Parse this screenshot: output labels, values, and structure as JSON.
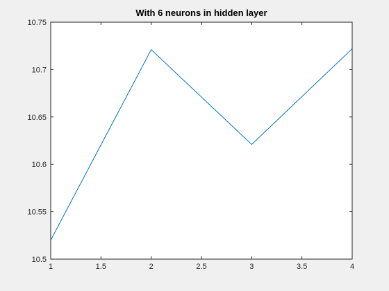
{
  "chart_data": {
    "type": "line",
    "title": "With 6 neurons in hidden layer",
    "xlabel": "",
    "ylabel": "",
    "xlim": [
      1,
      4
    ],
    "ylim": [
      10.5,
      10.75
    ],
    "x_ticks": [
      1,
      1.5,
      2,
      2.5,
      3,
      3.5,
      4
    ],
    "x_tick_labels": [
      "1",
      "1.5",
      "2",
      "2.5",
      "3",
      "3.5",
      "4"
    ],
    "y_ticks": [
      10.5,
      10.55,
      10.6,
      10.65,
      10.7,
      10.75
    ],
    "y_tick_labels": [
      "10.5",
      "10.55",
      "10.6",
      "10.65",
      "10.7",
      "10.75"
    ],
    "grid": false,
    "series": [
      {
        "x": [
          1,
          2,
          3,
          4
        ],
        "values": [
          10.52,
          10.721,
          10.621,
          10.722
        ]
      }
    ]
  },
  "colors": {
    "figure_background": "#f0f0f0",
    "axes_background": "#ffffff",
    "axes_line": "#262626",
    "series_line": "#0072bd"
  }
}
